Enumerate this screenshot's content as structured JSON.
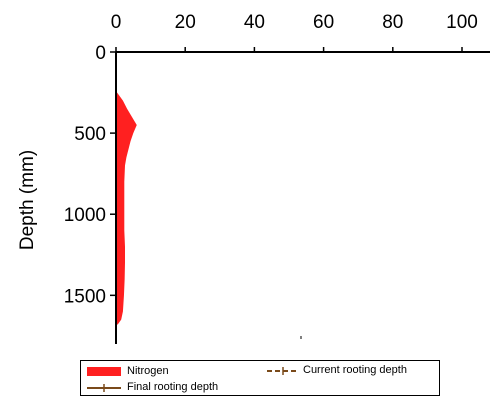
{
  "chart_data": {
    "type": "area",
    "ylabel": "Depth (mm)",
    "xlim": [
      0,
      100
    ],
    "ylim": [
      0,
      1800
    ],
    "y_inverted": true,
    "x_axis_position": "top",
    "x_ticks": [
      "0",
      "20",
      "40",
      "60",
      "80",
      "100"
    ],
    "y_ticks": [
      "0",
      "500",
      "1000",
      "1500"
    ],
    "grid": false,
    "legend_position": "bottom",
    "series": [
      {
        "name": "Nitrogen",
        "color": "#ff2020",
        "depth": [
          250,
          300,
          350,
          400,
          450,
          500,
          550,
          600,
          650,
          700,
          800,
          900,
          1000,
          1100,
          1200,
          1300,
          1400,
          1500,
          1600,
          1650,
          1680
        ],
        "value": [
          0.3,
          2.0,
          3.2,
          4.6,
          6.0,
          5.0,
          4.2,
          3.6,
          3.0,
          2.6,
          2.4,
          2.4,
          2.4,
          2.4,
          2.6,
          2.6,
          2.5,
          2.3,
          2.0,
          1.5,
          0.5
        ]
      },
      {
        "name": "Current rooting depth",
        "color": "#7a4a1a",
        "style": "dashed"
      },
      {
        "name": "Final rooting depth",
        "color": "#7a4a1a",
        "style": "solid"
      }
    ],
    "legend": {
      "nitrogen": "Nitrogen",
      "current": "Current rooting depth",
      "final": "Final rooting depth"
    }
  }
}
